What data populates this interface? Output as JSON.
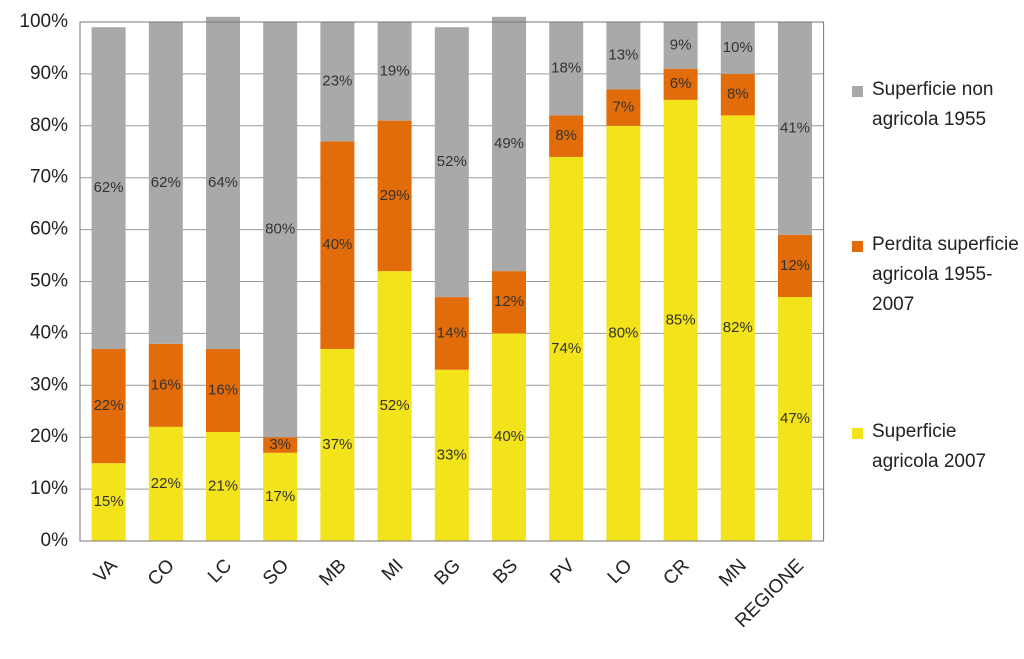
{
  "chart_data": {
    "type": "stacked-bar",
    "categories": [
      "VA",
      "CO",
      "LC",
      "SO",
      "MB",
      "MI",
      "BG",
      "BS",
      "PV",
      "LO",
      "CR",
      "MN",
      "REGIONE"
    ],
    "series": [
      {
        "name": "Superficie agricola 2007",
        "color": "#f2e31b",
        "values": [
          15,
          22,
          21,
          17,
          37,
          52,
          33,
          40,
          74,
          80,
          85,
          82,
          47
        ],
        "value_labels": [
          "15%",
          "22%",
          "21%",
          "17%",
          "37%",
          "52%",
          "33%",
          "40%",
          "74%",
          "80%",
          "85%",
          "82%",
          "47%"
        ]
      },
      {
        "name": "Perdita superficie agricola 1955-2007",
        "color": "#e36c0a",
        "values": [
          22,
          16,
          16,
          3,
          40,
          29,
          14,
          12,
          8,
          7,
          6,
          8,
          12
        ],
        "value_labels": [
          "22%",
          "16%",
          "16%",
          "3%",
          "40%",
          "29%",
          "14%",
          "12%",
          "8%",
          "7%",
          "6%",
          "8%",
          "12%"
        ]
      },
      {
        "name": "Superficie non agricola 1955",
        "color": "#a9a9a9",
        "values": [
          62,
          62,
          64,
          80,
          23,
          19,
          52,
          49,
          18,
          13,
          9,
          10,
          41
        ],
        "value_labels": [
          "62%",
          "62%",
          "64%",
          "80%",
          "23%",
          "19%",
          "52%",
          "49%",
          "18%",
          "13%",
          "9%",
          "10%",
          "41%"
        ]
      }
    ],
    "ylim": [
      0,
      100
    ],
    "yticks": [
      {
        "value": 0,
        "label": "0%"
      },
      {
        "value": 10,
        "label": "10%"
      },
      {
        "value": 20,
        "label": "20%"
      },
      {
        "value": 30,
        "label": "30%"
      },
      {
        "value": 40,
        "label": "40%"
      },
      {
        "value": 50,
        "label": "50%"
      },
      {
        "value": 60,
        "label": "60%"
      },
      {
        "value": 70,
        "label": "70%"
      },
      {
        "value": 80,
        "label": "80%"
      },
      {
        "value": 90,
        "label": "90%"
      },
      {
        "value": 100,
        "label": "100%"
      }
    ],
    "grid": true,
    "legend": "right"
  }
}
